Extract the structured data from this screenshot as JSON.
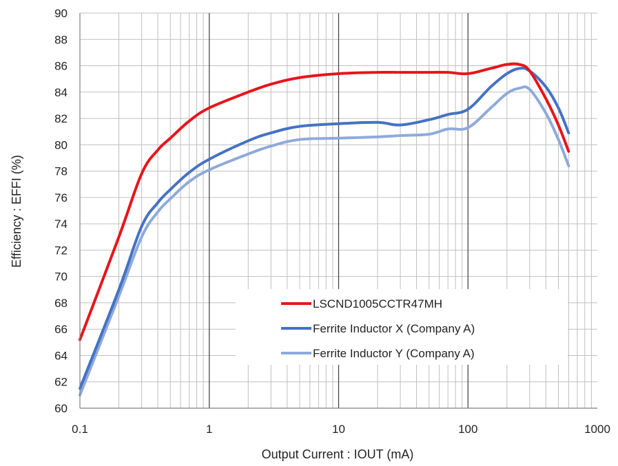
{
  "chart_data": {
    "type": "line",
    "title": "",
    "xlabel": "Output Current : IOUT (mA)",
    "ylabel": "Efficiency : EFFI (%)",
    "x_scale": "log",
    "xlim": [
      0.1,
      1000
    ],
    "ylim": [
      60,
      90
    ],
    "x_ticks": [
      "0.1",
      "1",
      "10",
      "100",
      "1000"
    ],
    "y_ticks": [
      "60",
      "62",
      "64",
      "66",
      "68",
      "70",
      "72",
      "74",
      "76",
      "78",
      "80",
      "82",
      "84",
      "86",
      "88",
      "90"
    ],
    "grid": true,
    "legend_position": "center-right",
    "series": [
      {
        "name": "LSCND1005CCTR47MH",
        "color": "#e8141b",
        "x": [
          0.1,
          0.2,
          0.3,
          0.4,
          0.5,
          0.7,
          1,
          2,
          3,
          5,
          10,
          20,
          30,
          50,
          70,
          100,
          150,
          200,
          250,
          300,
          400,
          500,
          600
        ],
        "y": [
          65.2,
          73.0,
          77.8,
          79.6,
          80.5,
          81.8,
          82.8,
          84.0,
          84.6,
          85.1,
          85.4,
          85.5,
          85.5,
          85.5,
          85.5,
          85.4,
          85.8,
          86.1,
          86.1,
          85.6,
          83.5,
          81.5,
          79.5
        ]
      },
      {
        "name": "Ferrite Inductor X (Company A)",
        "color": "#4472c4",
        "x": [
          0.1,
          0.2,
          0.3,
          0.4,
          0.5,
          0.7,
          1,
          2,
          3,
          5,
          10,
          20,
          30,
          50,
          70,
          100,
          150,
          200,
          250,
          300,
          400,
          500,
          600
        ],
        "y": [
          61.5,
          69.0,
          73.8,
          75.6,
          76.6,
          77.9,
          78.9,
          80.3,
          80.9,
          81.4,
          81.6,
          81.7,
          81.5,
          81.9,
          82.3,
          82.7,
          84.4,
          85.4,
          85.8,
          85.6,
          84.4,
          82.8,
          80.9
        ]
      },
      {
        "name": "Ferrite Inductor Y (Company A)",
        "color": "#8eaadb",
        "x": [
          0.1,
          0.2,
          0.3,
          0.4,
          0.5,
          0.7,
          1,
          2,
          3,
          5,
          10,
          20,
          30,
          50,
          70,
          100,
          150,
          200,
          250,
          300,
          400,
          500,
          600
        ],
        "y": [
          61.0,
          68.5,
          73.0,
          74.9,
          75.9,
          77.2,
          78.1,
          79.3,
          79.9,
          80.4,
          80.5,
          80.6,
          80.7,
          80.8,
          81.2,
          81.3,
          82.8,
          83.9,
          84.3,
          84.2,
          82.4,
          80.4,
          78.4
        ]
      }
    ]
  }
}
